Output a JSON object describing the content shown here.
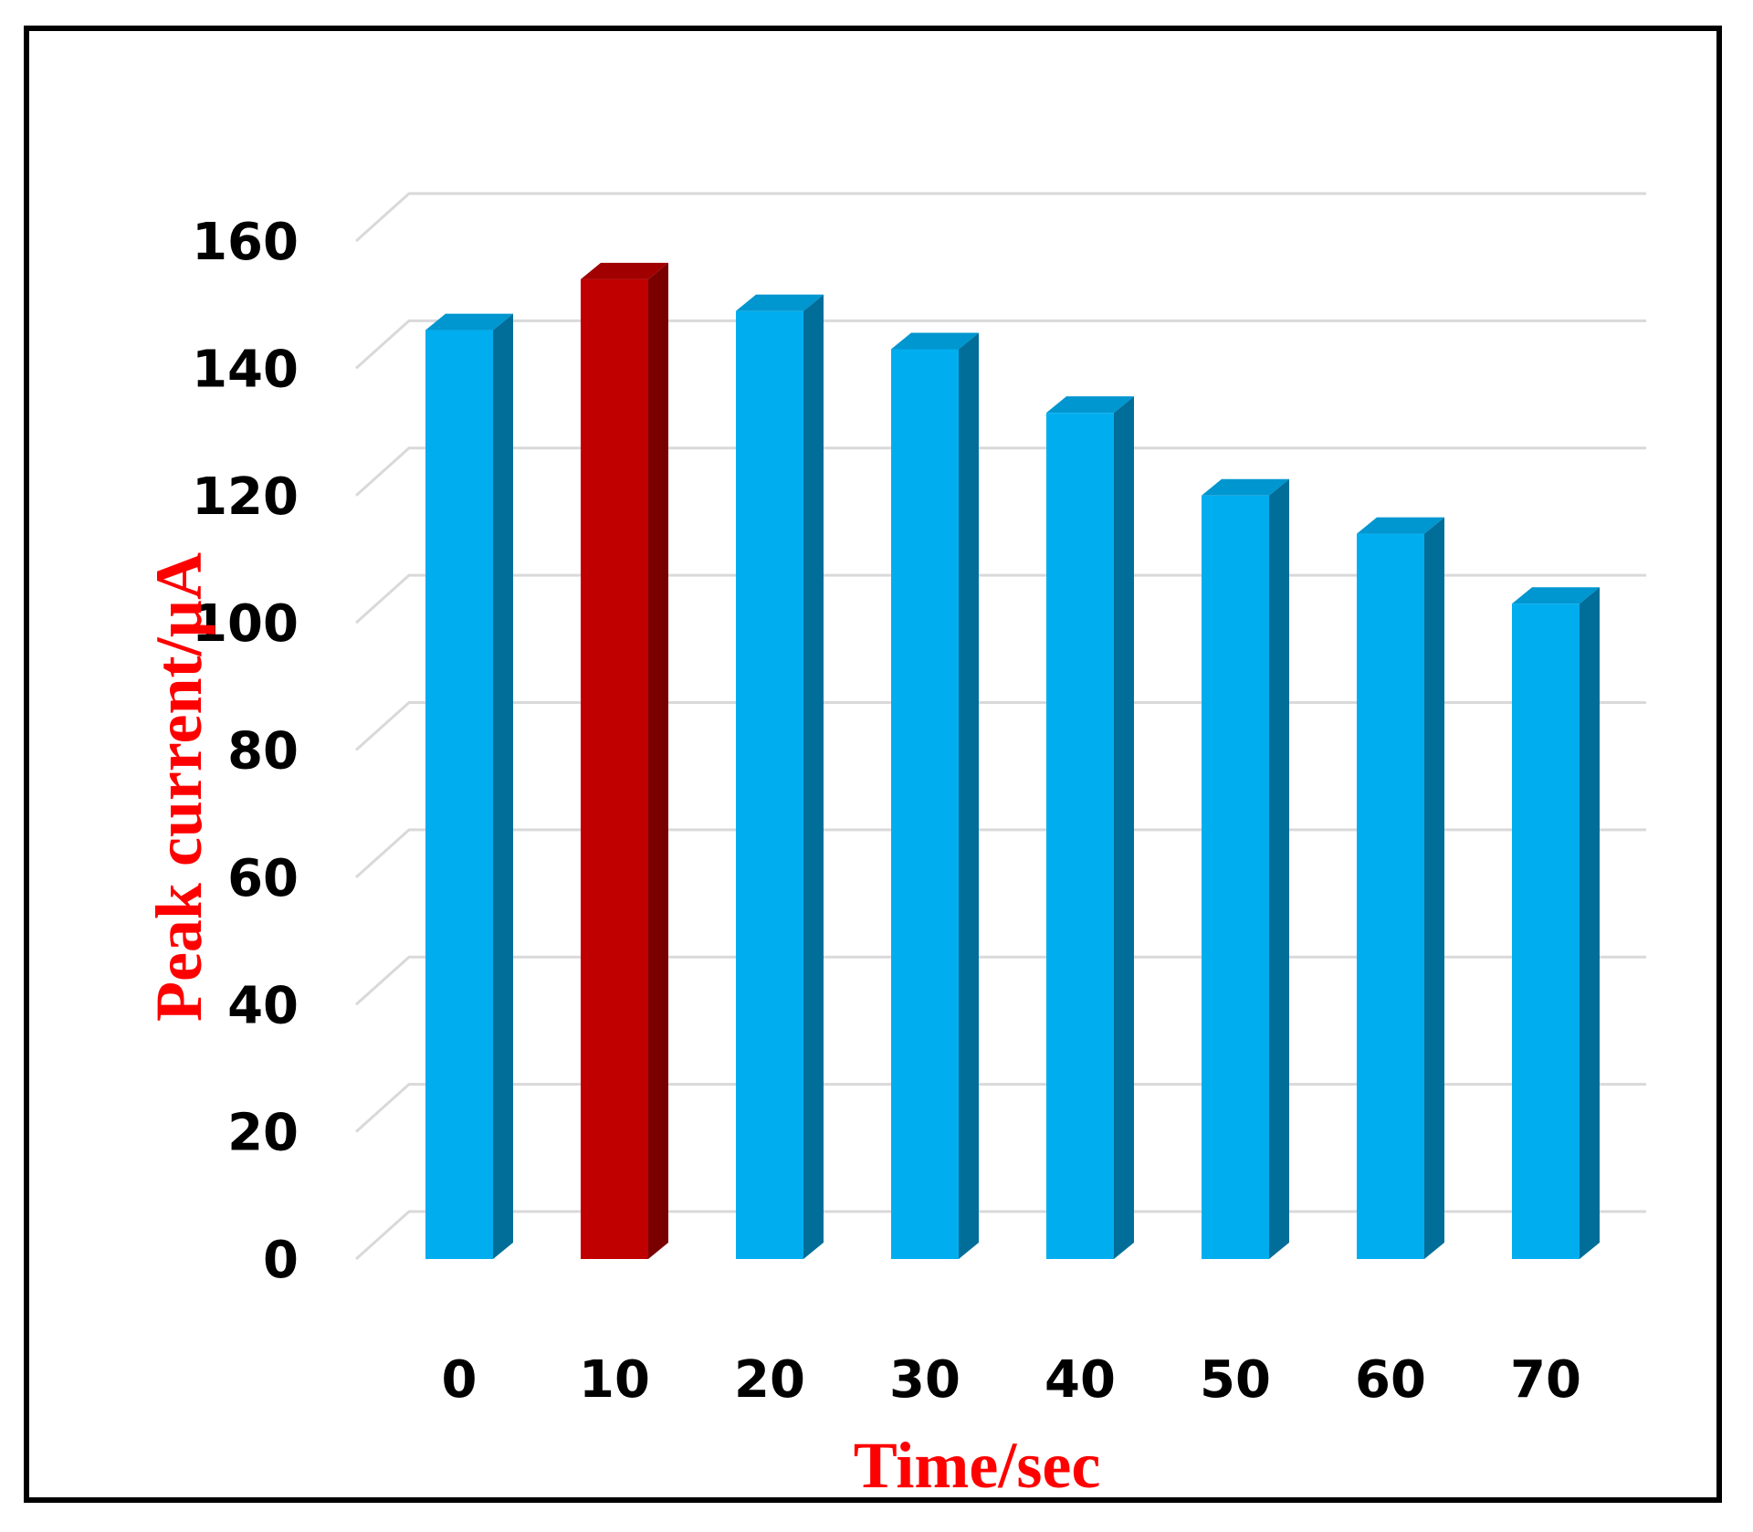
{
  "chart_data": {
    "type": "bar",
    "title": "",
    "xlabel": "Time/sec",
    "ylabel": "Peak current/µA",
    "categories": [
      "0",
      "10",
      "20",
      "30",
      "40",
      "50",
      "60",
      "70"
    ],
    "values": [
      146,
      154,
      149,
      143,
      133,
      120,
      114,
      103
    ],
    "highlight_index": 1,
    "ylim": [
      0,
      160
    ],
    "yticks": [
      "0",
      "20",
      "40",
      "60",
      "80",
      "100",
      "120",
      "140",
      "160"
    ],
    "grid": true,
    "style": "3d-column",
    "colors": {
      "bar_front": "#00AEEF",
      "bar_side": "#006E99",
      "bar_top": "#0096D0",
      "highlight_front": "#C00000",
      "highlight_side": "#7A0000",
      "highlight_top": "#A00000",
      "axis_title": "#FF0000",
      "grid": "#D9D9D9"
    }
  }
}
